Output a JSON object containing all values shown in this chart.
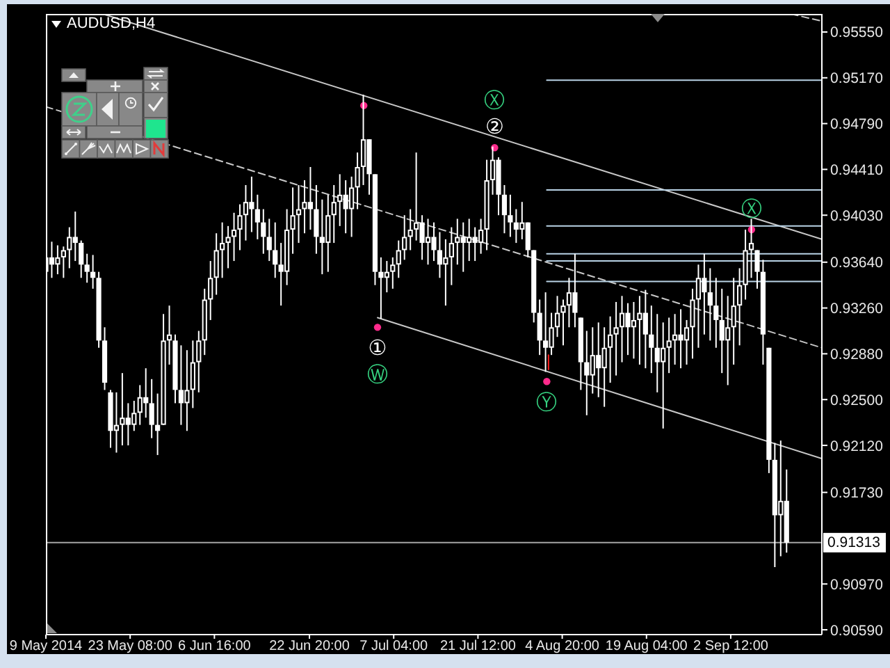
{
  "chart_data": {
    "type": "candlestick",
    "title": "AUDUSD,H4",
    "color": "#ffffff",
    "x": [
      "2014-05-09",
      "2014-05-10",
      "2014-05-11",
      "2014-05-12",
      "2014-05-13",
      "2014-05-14",
      "2014-05-15",
      "2014-05-16",
      "2014-05-17",
      "2014-05-18",
      "2014-05-19",
      "2014-05-20",
      "2014-05-21",
      "2014-05-22",
      "2014-05-23",
      "2014-05-24",
      "2014-05-25",
      "2014-05-26",
      "2014-05-27",
      "2014-05-28",
      "2014-05-29",
      "2014-05-30",
      "2014-05-31",
      "2014-06-01",
      "2014-06-02",
      "2014-06-03",
      "2014-06-04",
      "2014-06-05",
      "2014-06-06",
      "2014-06-07",
      "2014-06-08",
      "2014-06-09",
      "2014-06-10",
      "2014-06-11",
      "2014-06-12",
      "2014-06-13",
      "2014-06-14",
      "2014-06-15",
      "2014-06-16",
      "2014-06-17",
      "2014-06-18",
      "2014-06-19",
      "2014-06-20",
      "2014-06-21",
      "2014-06-22",
      "2014-06-23",
      "2014-06-24",
      "2014-06-25",
      "2014-06-26",
      "2014-06-27",
      "2014-06-28",
      "2014-06-29",
      "2014-06-30",
      "2014-07-01",
      "2014-07-02",
      "2014-07-03",
      "2014-07-04",
      "2014-07-05",
      "2014-07-06",
      "2014-07-07",
      "2014-07-08",
      "2014-07-09",
      "2014-07-10",
      "2014-07-11",
      "2014-07-12",
      "2014-07-13",
      "2014-07-14",
      "2014-07-15",
      "2014-07-16",
      "2014-07-17",
      "2014-07-18",
      "2014-07-19",
      "2014-07-20",
      "2014-07-21",
      "2014-07-22",
      "2014-07-23",
      "2014-07-24",
      "2014-07-25",
      "2014-07-26",
      "2014-07-27",
      "2014-07-28",
      "2014-07-29",
      "2014-07-30",
      "2014-07-31",
      "2014-08-01",
      "2014-08-02",
      "2014-08-03",
      "2014-08-04",
      "2014-08-05",
      "2014-08-06",
      "2014-08-07",
      "2014-08-08",
      "2014-08-09",
      "2014-08-10",
      "2014-08-11",
      "2014-08-12",
      "2014-08-13",
      "2014-08-14",
      "2014-08-15",
      "2014-08-16",
      "2014-08-17",
      "2014-08-18",
      "2014-08-19",
      "2014-08-20",
      "2014-08-21",
      "2014-08-22",
      "2014-08-23",
      "2014-08-24",
      "2014-08-25",
      "2014-08-26",
      "2014-08-27",
      "2014-08-28",
      "2014-08-29",
      "2014-08-30",
      "2014-08-31",
      "2014-09-01",
      "2014-09-02",
      "2014-09-03",
      "2014-09-04",
      "2014-09-05",
      "2014-09-06",
      "2014-09-07",
      "2014-09-08",
      "2014-09-09",
      "2014-09-10",
      "2014-09-11",
      "2014-09-12"
    ],
    "ohlc": [
      [
        0.9356,
        0.9374,
        0.9347,
        0.9368
      ],
      [
        0.9368,
        0.9381,
        0.9351,
        0.9362
      ],
      [
        0.9362,
        0.9378,
        0.9354,
        0.9368
      ],
      [
        0.9368,
        0.9377,
        0.9351,
        0.9374
      ],
      [
        0.9374,
        0.9393,
        0.9359,
        0.9385
      ],
      [
        0.9385,
        0.9406,
        0.9365,
        0.938
      ],
      [
        0.938,
        0.9382,
        0.9351,
        0.9362
      ],
      [
        0.9362,
        0.9371,
        0.9347,
        0.9356
      ],
      [
        0.9356,
        0.937,
        0.9342,
        0.9351
      ],
      [
        0.9351,
        0.9356,
        0.9293,
        0.9299
      ],
      [
        0.9299,
        0.931,
        0.9258,
        0.9264
      ],
      [
        0.9256,
        0.9258,
        0.921,
        0.9224
      ],
      [
        0.9224,
        0.9256,
        0.9206,
        0.9229
      ],
      [
        0.9229,
        0.9272,
        0.9212,
        0.9235
      ],
      [
        0.9235,
        0.9247,
        0.9212,
        0.9229
      ],
      [
        0.9229,
        0.9249,
        0.9224,
        0.9239
      ],
      [
        0.9239,
        0.9262,
        0.9229,
        0.9252
      ],
      [
        0.9252,
        0.9276,
        0.9235,
        0.9247
      ],
      [
        0.9247,
        0.9267,
        0.9218,
        0.9229
      ],
      [
        0.9229,
        0.9255,
        0.9204,
        0.9224
      ],
      [
        0.9229,
        0.9321,
        0.9229,
        0.9299
      ],
      [
        0.9299,
        0.9328,
        0.9279,
        0.9304
      ],
      [
        0.9299,
        0.9304,
        0.9247,
        0.9258
      ],
      [
        0.9258,
        0.9295,
        0.9229,
        0.9247
      ],
      [
        0.9247,
        0.9291,
        0.9224,
        0.9258
      ],
      [
        0.9258,
        0.9299,
        0.9243,
        0.9281
      ],
      [
        0.9281,
        0.9307,
        0.9256,
        0.9299
      ],
      [
        0.9299,
        0.9342,
        0.9287,
        0.9333
      ],
      [
        0.9333,
        0.9365,
        0.9316,
        0.9351
      ],
      [
        0.9351,
        0.9388,
        0.9337,
        0.9374
      ],
      [
        0.9374,
        0.9397,
        0.9351,
        0.938
      ],
      [
        0.938,
        0.9394,
        0.9359,
        0.9385
      ],
      [
        0.9385,
        0.9405,
        0.9365,
        0.9391
      ],
      [
        0.9391,
        0.9412,
        0.9374,
        0.9403
      ],
      [
        0.9403,
        0.9428,
        0.9382,
        0.9414
      ],
      [
        0.9414,
        0.9435,
        0.9389,
        0.9408
      ],
      [
        0.9408,
        0.942,
        0.9383,
        0.9397
      ],
      [
        0.9397,
        0.9408,
        0.9371,
        0.9385
      ],
      [
        0.9385,
        0.94,
        0.9365,
        0.9374
      ],
      [
        0.9374,
        0.9397,
        0.9351,
        0.9362
      ],
      [
        0.9362,
        0.938,
        0.9328,
        0.9356
      ],
      [
        0.9356,
        0.9408,
        0.9345,
        0.9391
      ],
      [
        0.9391,
        0.9426,
        0.9371,
        0.9403
      ],
      [
        0.9403,
        0.9428,
        0.938,
        0.9408
      ],
      [
        0.9408,
        0.9432,
        0.9388,
        0.9414
      ],
      [
        0.9414,
        0.9443,
        0.9391,
        0.9408
      ],
      [
        0.9408,
        0.9428,
        0.9371,
        0.9385
      ],
      [
        0.9385,
        0.9416,
        0.9354,
        0.938
      ],
      [
        0.938,
        0.942,
        0.9356,
        0.9403
      ],
      [
        0.9403,
        0.9428,
        0.938,
        0.9414
      ],
      [
        0.9414,
        0.9437,
        0.9394,
        0.942
      ],
      [
        0.942,
        0.9432,
        0.9388,
        0.9408
      ],
      [
        0.9408,
        0.9435,
        0.9385,
        0.9426
      ],
      [
        0.9426,
        0.9455,
        0.9408,
        0.9443
      ],
      [
        0.9443,
        0.9503,
        0.9428,
        0.9466
      ],
      [
        0.9466,
        0.9466,
        0.942,
        0.9437
      ],
      [
        0.9437,
        0.9437,
        0.9345,
        0.9356
      ],
      [
        0.9356,
        0.9368,
        0.9317,
        0.9351
      ],
      [
        0.9351,
        0.9365,
        0.9339,
        0.9356
      ],
      [
        0.9356,
        0.9368,
        0.9342,
        0.9362
      ],
      [
        0.9362,
        0.9382,
        0.9351,
        0.9374
      ],
      [
        0.9374,
        0.9403,
        0.9366,
        0.9385
      ],
      [
        0.9385,
        0.9408,
        0.9374,
        0.9391
      ],
      [
        0.9391,
        0.9455,
        0.9382,
        0.9397
      ],
      [
        0.9397,
        0.9403,
        0.9366,
        0.938
      ],
      [
        0.938,
        0.94,
        0.9362,
        0.9385
      ],
      [
        0.9385,
        0.9397,
        0.9365,
        0.9374
      ],
      [
        0.9374,
        0.9389,
        0.9351,
        0.9362
      ],
      [
        0.9362,
        0.9383,
        0.9328,
        0.9368
      ],
      [
        0.9368,
        0.9393,
        0.9345,
        0.938
      ],
      [
        0.938,
        0.94,
        0.9362,
        0.9385
      ],
      [
        0.9385,
        0.9397,
        0.9356,
        0.938
      ],
      [
        0.938,
        0.94,
        0.9365,
        0.9385
      ],
      [
        0.9385,
        0.9393,
        0.9365,
        0.938
      ],
      [
        0.938,
        0.94,
        0.9371,
        0.9391
      ],
      [
        0.9391,
        0.9449,
        0.9374,
        0.9432
      ],
      [
        0.9432,
        0.946,
        0.942,
        0.9449
      ],
      [
        0.9449,
        0.9451,
        0.9403,
        0.942
      ],
      [
        0.942,
        0.9428,
        0.9388,
        0.9403
      ],
      [
        0.9403,
        0.942,
        0.9385,
        0.9397
      ],
      [
        0.9397,
        0.9408,
        0.938,
        0.9391
      ],
      [
        0.9391,
        0.9414,
        0.9383,
        0.9397
      ],
      [
        0.9397,
        0.9397,
        0.9368,
        0.9374
      ],
      [
        0.9374,
        0.9374,
        0.9314,
        0.9322
      ],
      [
        0.9322,
        0.9333,
        0.9287,
        0.9299
      ],
      [
        0.9299,
        0.9339,
        0.9273,
        0.9293
      ],
      [
        0.9293,
        0.9322,
        0.9287,
        0.931
      ],
      [
        0.931,
        0.9336,
        0.9302,
        0.9322
      ],
      [
        0.9322,
        0.9333,
        0.9295,
        0.9328
      ],
      [
        0.9328,
        0.9351,
        0.931,
        0.9339
      ],
      [
        0.9339,
        0.9371,
        0.931,
        0.9322
      ],
      [
        0.9318,
        0.9318,
        0.9258,
        0.9281
      ],
      [
        0.9281,
        0.9307,
        0.9237,
        0.927
      ],
      [
        0.927,
        0.931,
        0.9255,
        0.9287
      ],
      [
        0.9287,
        0.9314,
        0.9252,
        0.9276
      ],
      [
        0.9276,
        0.931,
        0.9244,
        0.9293
      ],
      [
        0.9293,
        0.9319,
        0.9264,
        0.9304
      ],
      [
        0.9304,
        0.9331,
        0.927,
        0.931
      ],
      [
        0.931,
        0.9336,
        0.9281,
        0.9322
      ],
      [
        0.9322,
        0.933,
        0.9287,
        0.931
      ],
      [
        0.931,
        0.9331,
        0.9284,
        0.9316
      ],
      [
        0.9316,
        0.9336,
        0.9279,
        0.9322
      ],
      [
        0.9322,
        0.9341,
        0.9276,
        0.9304
      ],
      [
        0.9304,
        0.9328,
        0.9272,
        0.9293
      ],
      [
        0.9293,
        0.9321,
        0.9256,
        0.9281
      ],
      [
        0.9281,
        0.9314,
        0.9226,
        0.9293
      ],
      [
        0.9293,
        0.9318,
        0.9272,
        0.9299
      ],
      [
        0.9299,
        0.9321,
        0.9279,
        0.9304
      ],
      [
        0.9304,
        0.9325,
        0.9276,
        0.9299
      ],
      [
        0.9299,
        0.9316,
        0.9279,
        0.931
      ],
      [
        0.931,
        0.9342,
        0.9284,
        0.9333
      ],
      [
        0.9333,
        0.9362,
        0.9293,
        0.9351
      ],
      [
        0.9351,
        0.9371,
        0.9304,
        0.9339
      ],
      [
        0.9339,
        0.9359,
        0.9299,
        0.9328
      ],
      [
        0.9328,
        0.9351,
        0.9293,
        0.9316
      ],
      [
        0.9316,
        0.9342,
        0.9272,
        0.9299
      ],
      [
        0.9299,
        0.9336,
        0.9262,
        0.931
      ],
      [
        0.931,
        0.9351,
        0.9279,
        0.9328
      ],
      [
        0.9328,
        0.9359,
        0.9295,
        0.9345
      ],
      [
        0.9345,
        0.9391,
        0.9333,
        0.9374
      ],
      [
        0.9374,
        0.94,
        0.9351,
        0.938
      ],
      [
        0.9374,
        0.9374,
        0.9342,
        0.9356
      ],
      [
        0.9356,
        0.9366,
        0.9279,
        0.9304
      ],
      [
        0.9293,
        0.9293,
        0.9189,
        0.92
      ],
      [
        0.92,
        0.9214,
        0.9111,
        0.9154
      ],
      [
        0.9154,
        0.9216,
        0.912,
        0.9166
      ],
      [
        0.9166,
        0.9192,
        0.9123,
        0.91313
      ]
    ],
    "series": [
      {
        "type": "line",
        "color": "#c8c8c8",
        "line_style": "solid",
        "x": [
          "2014-05-18T16:00",
          "2014-09-18T00:00"
        ],
        "values": [
          0.957,
          0.9383
        ]
      },
      {
        "type": "line",
        "color": "#c8c8c8",
        "line_style": "solid",
        "x": [
          "2014-07-04T10:00",
          "2014-09-18T00:00"
        ],
        "values": [
          0.9318,
          0.9201
        ]
      },
      {
        "type": "line",
        "color": "#c8c8c8",
        "line_style": "dashed",
        "x": [
          "2014-05-09T00:00",
          "2014-09-18T00:00"
        ],
        "values": [
          0.9493,
          0.9293
        ]
      },
      {
        "type": "line",
        "color": "#c8c8c8",
        "line_style": "dashed",
        "x": [
          "2014-09-12T18:00",
          "2014-09-18T00:00"
        ],
        "values": [
          0.957,
          0.9564
        ]
      },
      {
        "type": "line",
        "color": "#b9d3e6",
        "line_style": "solid",
        "x": [
          "2014-08-02T05:00",
          "2014-09-18T00:00"
        ],
        "values": [
          0.9515,
          0.9515
        ]
      },
      {
        "type": "line",
        "color": "#b9d3e6",
        "line_style": "solid",
        "x": [
          "2014-08-02T05:00",
          "2014-09-18T00:00"
        ],
        "values": [
          0.9424,
          0.9424
        ]
      },
      {
        "type": "line",
        "color": "#b9d3e6",
        "line_style": "solid",
        "x": [
          "2014-08-02T05:00",
          "2014-09-18T00:00"
        ],
        "values": [
          0.9394,
          0.9394
        ]
      },
      {
        "type": "line",
        "color": "#b9d3e6",
        "line_style": "solid",
        "x": [
          "2014-08-02T05:00",
          "2014-09-18T00:00"
        ],
        "values": [
          0.9371,
          0.9371
        ]
      },
      {
        "type": "line",
        "color": "#b9d3e6",
        "line_style": "solid",
        "x": [
          "2014-08-02T05:00",
          "2014-09-18T00:00"
        ],
        "values": [
          0.9365,
          0.9365
        ]
      },
      {
        "type": "line",
        "color": "#b9d3e6",
        "line_style": "solid",
        "x": [
          "2014-08-02T05:00",
          "2014-09-18T00:00"
        ],
        "values": [
          0.9348,
          0.9348
        ]
      },
      {
        "type": "line",
        "color": "#ff2020",
        "line_style": "solid",
        "x": [
          "2014-08-02T12:00",
          "2014-08-02T12:00"
        ],
        "values": [
          0.9287,
          0.9275
        ]
      },
      {
        "type": "scatter",
        "color": "#ff2a8c",
        "marker": "circle",
        "x": [
          "2014-07-02T02:00",
          "2014-07-04T10:00",
          "2014-07-24T08:00",
          "2014-08-02T05:00",
          "2014-09-06T01:00"
        ],
        "values": [
          0.9494,
          0.931,
          0.9459,
          0.9265,
          0.9391
        ]
      }
    ],
    "annotations": [
      {
        "text": "①",
        "x": "2014-07-04T10:00",
        "y": 0.931
      },
      {
        "text": "②",
        "x": "2014-07-24T08:00",
        "y": 0.9459
      },
      {
        "text": "Ⓦ",
        "x": "2014-07-04T10:00",
        "y": 0.931
      },
      {
        "text": "Ⓧ",
        "x": "2014-07-24T08:00",
        "y": 0.9459
      },
      {
        "text": "Ⓨ",
        "x": "2014-08-02T05:00",
        "y": 0.9265
      },
      {
        "text": "Ⓧ",
        "x": "2014-09-06T01:00",
        "y": 0.9391
      }
    ],
    "ref_lines": [
      {
        "axis": "y",
        "value": 0.91313,
        "label": "0.91313",
        "color": "#a6a6a6"
      }
    ],
    "xlim": [
      "2014-05-09T00:00",
      "2014-09-18T00:00"
    ],
    "xticks": [
      {
        "value": "2014-05-09T00:00",
        "label": "9 May 2014"
      },
      {
        "value": "2014-05-23T08:00",
        "label": "23 May 08:00"
      },
      {
        "value": "2014-06-06T16:00",
        "label": "6 Jun 16:00"
      },
      {
        "value": "2014-06-22T20:00",
        "label": "22 Jun 20:00"
      },
      {
        "value": "2014-07-07T04:00",
        "label": "7 Jul 04:00"
      },
      {
        "value": "2014-07-21T12:00",
        "label": "21 Jul 12:00"
      },
      {
        "value": "2014-08-04T20:00",
        "label": "4 Aug 20:00"
      },
      {
        "value": "2014-08-19T04:00",
        "label": "19 Aug 04:00"
      },
      {
        "value": "2014-09-02T12:00",
        "label": "2 Sep 12:00"
      }
    ],
    "ylim": [
      0.9055,
      0.957
    ],
    "yticks": [
      {
        "value": 0.9555,
        "label": "0.95550"
      },
      {
        "value": 0.9517,
        "label": "0.95170"
      },
      {
        "value": 0.9479,
        "label": "0.94790"
      },
      {
        "value": 0.9441,
        "label": "0.94410"
      },
      {
        "value": 0.9403,
        "label": "0.94030"
      },
      {
        "value": 0.9364,
        "label": "0.93640"
      },
      {
        "value": 0.9326,
        "label": "0.93260"
      },
      {
        "value": 0.9288,
        "label": "0.92880"
      },
      {
        "value": 0.925,
        "label": "0.92500"
      },
      {
        "value": 0.9212,
        "label": "0.92120"
      },
      {
        "value": 0.9173,
        "label": "0.91730"
      },
      {
        "value": 0.9097,
        "label": "0.90970"
      },
      {
        "value": 0.9059,
        "label": "0.90590"
      }
    ]
  }
}
